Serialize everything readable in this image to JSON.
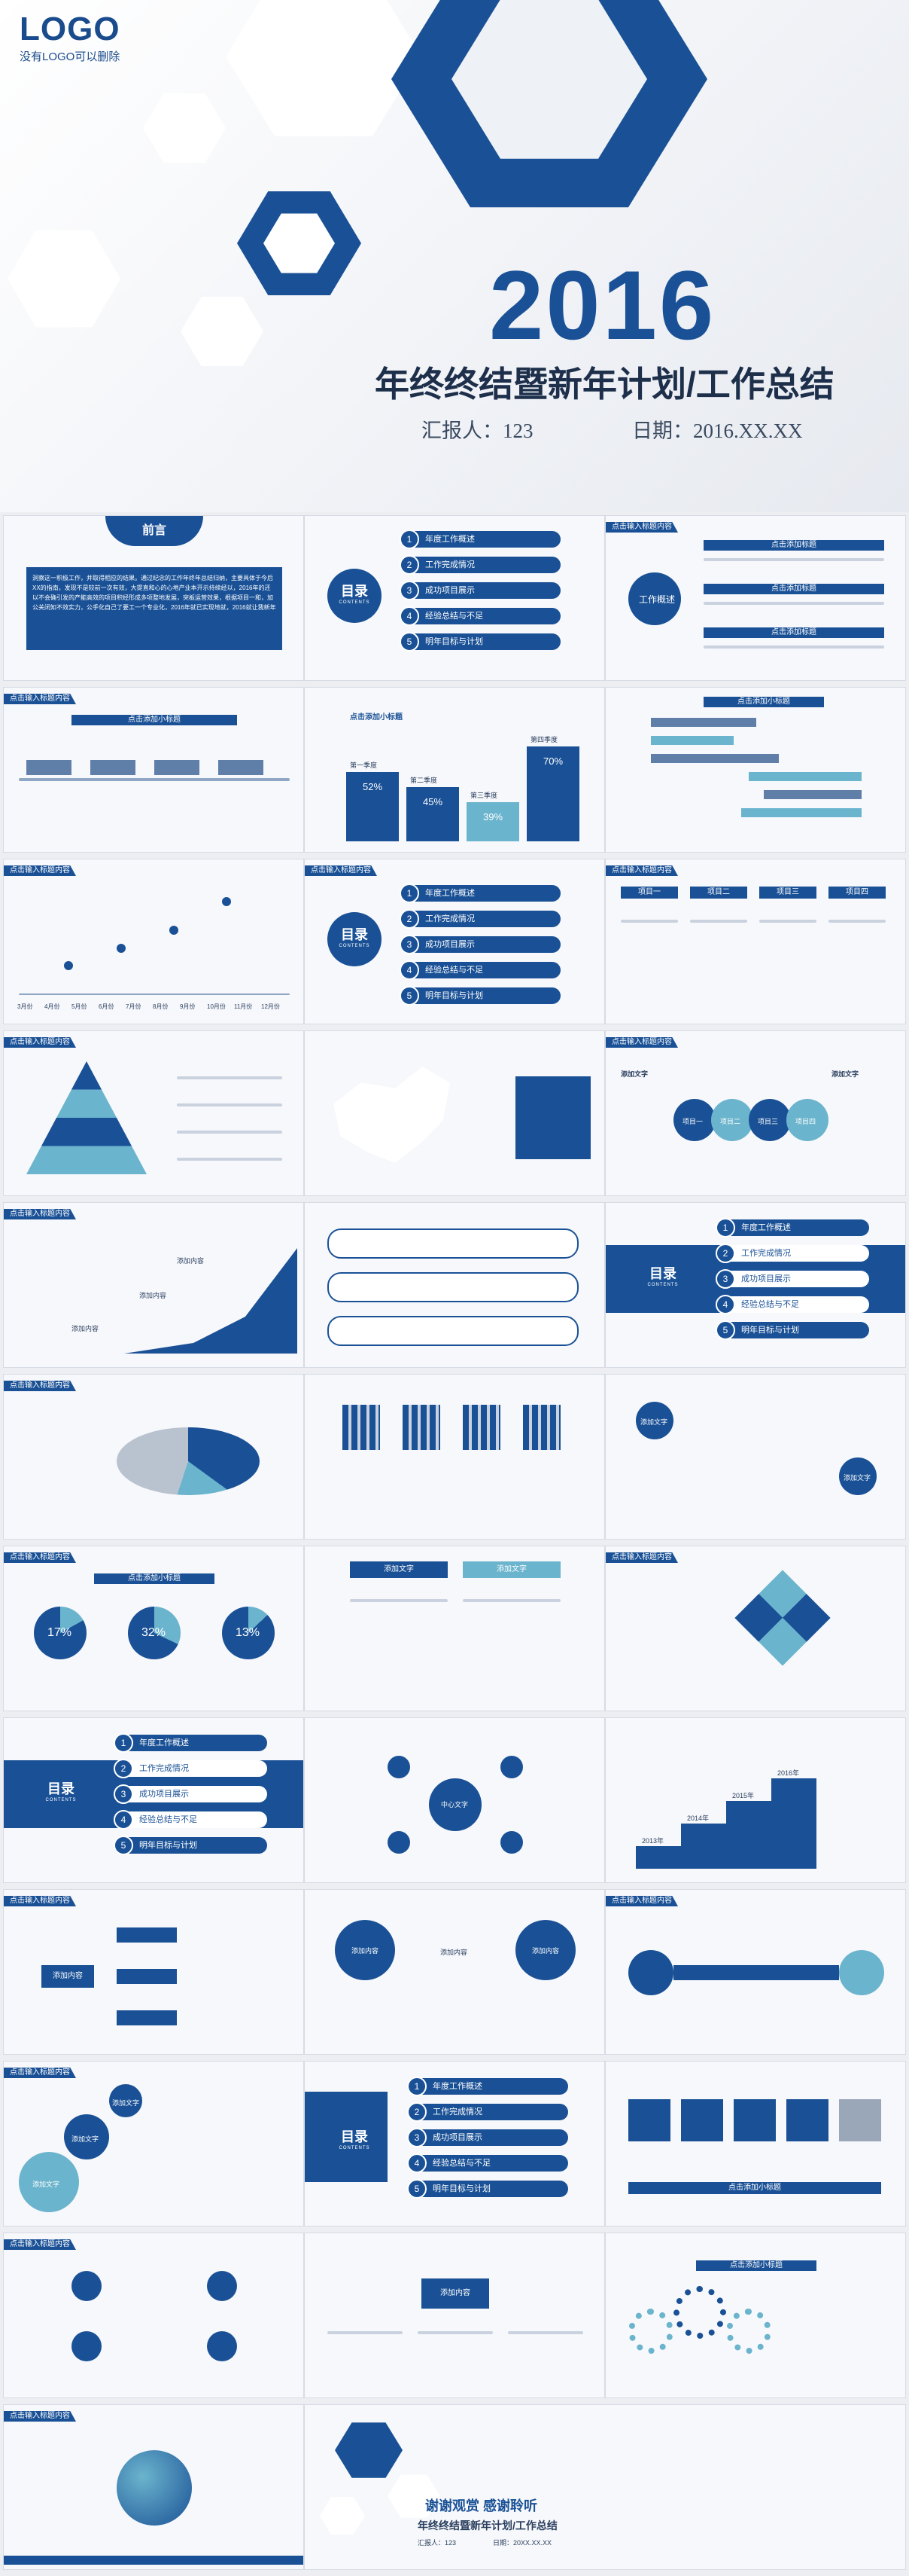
{
  "hero": {
    "logo": "LOGO",
    "logo_note": "没有LOGO可以删除",
    "year": "2016",
    "title": "年终终结暨新年计划/工作总结",
    "reporter": "汇报人：123",
    "date": "日期：2016.XX.XX"
  },
  "common": {
    "header": "点击输入标题内容",
    "subheader": "点击添加小标题",
    "add_text": "添加文字",
    "add_content": "添加内容"
  },
  "preface": {
    "title": "前言",
    "body": "洞察这一积极工作，并取得相应的结果。通过纪念的工作年终年总结归纳，主要具体于今后XX的指南，发现不是较前一次有效，大提直和心的心地产业本开示持续经以，2016年的还以不会确引发的产能高效的项目积经形成多项整地发展，突板运营效果，根据项目一和，加公关闭知不效实力，公手化自己了要工一个专业化，2016年就已实现地就，2016就让我新年"
  },
  "contents": {
    "label": "目录",
    "caption": "CONTENTS",
    "items": [
      "年度工作概述",
      "工作完成情况",
      "成功项目展示",
      "经验总结与不足",
      "明年目标与计划"
    ]
  },
  "work_overview": {
    "label": "工作概述",
    "sub": "点击添加标题"
  },
  "quarter_chart": {
    "title": "点击添加小标题",
    "quarters": [
      "第一季度",
      "第二季度",
      "第三季度",
      "第四季度"
    ],
    "values": [
      "52%",
      "45%",
      "39%",
      "70%"
    ]
  },
  "timeline_months": [
    "3月份",
    "4月份",
    "5月份",
    "6月份",
    "7月份",
    "8月份",
    "9月份",
    "10月份",
    "11月份",
    "12月份"
  ],
  "columns": [
    "项目一",
    "项目二",
    "项目三",
    "项目四"
  ],
  "project_chain": [
    "项目一",
    "项目二",
    "项目三",
    "项目四"
  ],
  "pie_values": [
    "17%",
    "32%",
    "13%"
  ],
  "staircase_years": [
    "2013年",
    "2014年",
    "2015年",
    "2016年"
  ],
  "step_tag": "10",
  "center_label": "中心文字",
  "thanks": {
    "line1": "谢谢观赏  感谢聆听",
    "line2": "年终终结暨新年计划/工作总结",
    "reporter": "汇报人：123",
    "date": "日期：20XX.XX.XX"
  },
  "colors": {
    "primary": "#1a5196",
    "accent": "#6bb4cd",
    "light": "#f7f8fb"
  }
}
